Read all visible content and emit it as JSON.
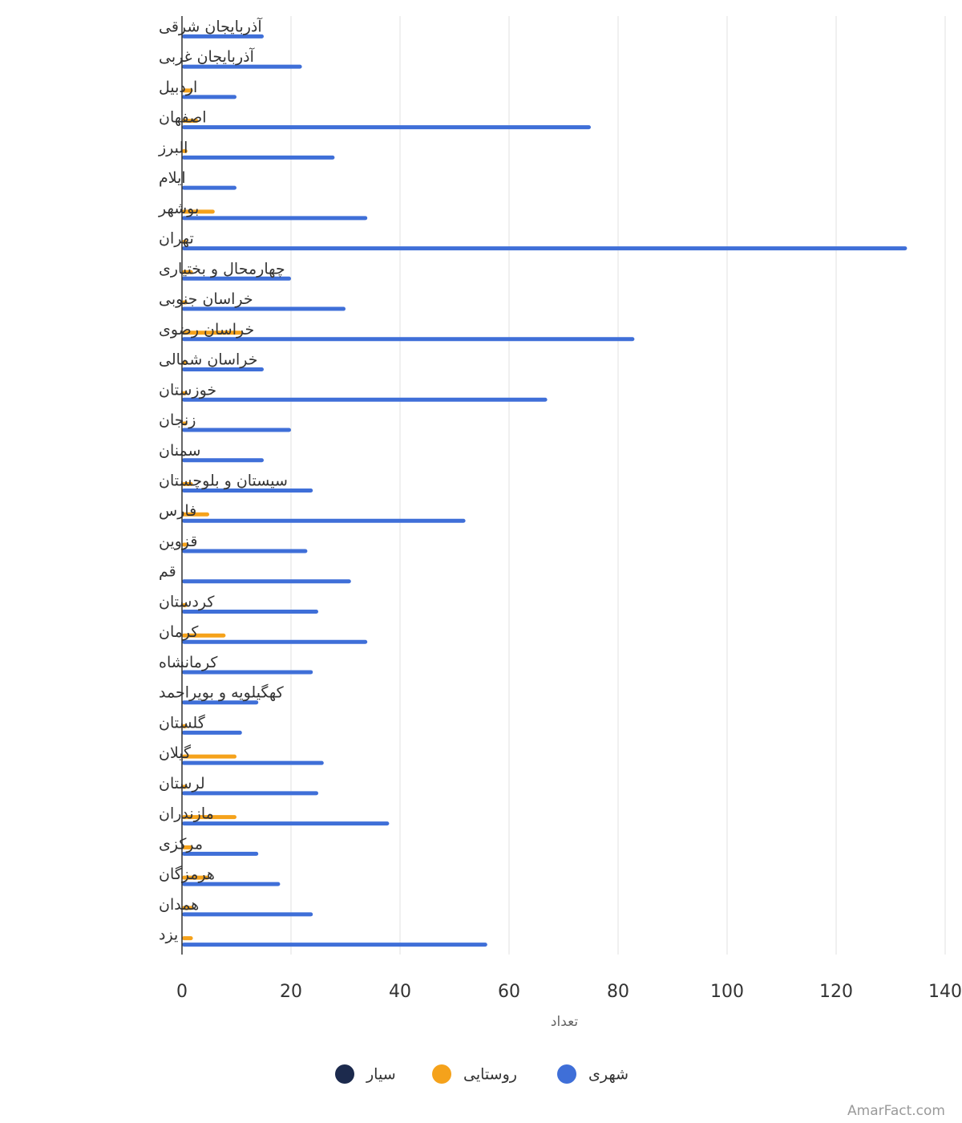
{
  "chart_data": {
    "type": "bar",
    "orientation": "horizontal",
    "categories": [
      "آذربایجان شرقی",
      "آذربایجان غربی",
      "اردبیل",
      "اصفهان",
      "البرز",
      "ایلام",
      "بوشهر",
      "تهران",
      "چهارمحال و بختیاری",
      "خراسان جنوبی",
      "خراسان رضوی",
      "خراسان شمالی",
      "خوزستان",
      "زنجان",
      "سمنان",
      "سیستان و بلوچستان",
      "فارس",
      "قزوین",
      "قم",
      "کردستان",
      "کرمان",
      "کرمانشاه",
      "کهگیلویه و بویراحمد",
      "گلستان",
      "گیلان",
      "لرستان",
      "مازندران",
      "مرکزی",
      "هرمزگان",
      "همدان",
      "یزد"
    ],
    "series": [
      {
        "name": "سیار",
        "color": "#1c2a4d",
        "values": [
          0,
          0,
          0,
          0,
          0,
          0,
          0,
          0,
          0,
          0,
          0,
          0,
          0,
          0,
          0,
          0,
          0,
          0,
          0,
          0,
          0,
          0,
          0,
          0,
          0,
          0,
          0,
          0,
          0,
          0,
          0
        ]
      },
      {
        "name": "روستایی",
        "color": "#f5a21b",
        "values": [
          0,
          0,
          2,
          3,
          1,
          0,
          6,
          1,
          2,
          1,
          11,
          1,
          1,
          1,
          0,
          2,
          5,
          1,
          0,
          1,
          8,
          0,
          0,
          1,
          10,
          1,
          10,
          2,
          5,
          2,
          2
        ]
      },
      {
        "name": "شهری",
        "color": "#3f6fd8",
        "values": [
          15,
          22,
          10,
          75,
          28,
          10,
          34,
          133,
          20,
          30,
          83,
          15,
          67,
          20,
          15,
          24,
          52,
          23,
          31,
          25,
          34,
          24,
          14,
          11,
          26,
          25,
          38,
          14,
          18,
          24,
          56
        ]
      }
    ],
    "xlim": [
      0,
      140
    ],
    "ticks": [
      0,
      20,
      40,
      60,
      80,
      100,
      120,
      140
    ],
    "xlabel": "تعداد",
    "ylabel": "",
    "grid": true,
    "legend_placement": "bottom-center"
  },
  "watermark": "AmarFact.com"
}
